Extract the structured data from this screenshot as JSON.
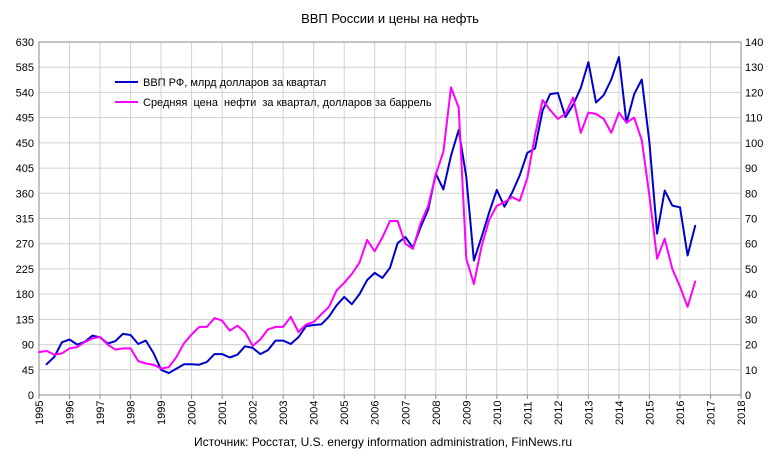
{
  "chart_data": {
    "type": "line",
    "title": "ВВП России и цены на нефть",
    "source": "Источник: Росстат, U.S. energy information administration, FinNews.ru",
    "xlim": [
      1995,
      2018
    ],
    "x_ticks": [
      "1995",
      "1996",
      "1997",
      "1998",
      "1999",
      "2000",
      "2001",
      "2002",
      "2003",
      "2004",
      "2005",
      "2006",
      "2007",
      "2008",
      "2009",
      "2010",
      "2011",
      "2012",
      "2013",
      "2014",
      "2015",
      "2016",
      "2017",
      "2018"
    ],
    "y_left": {
      "min": 0,
      "max": 630,
      "ticks": [
        "0",
        "45",
        "90",
        "135",
        "180",
        "225",
        "270",
        "315",
        "360",
        "405",
        "450",
        "495",
        "540",
        "585",
        "630"
      ]
    },
    "y_right": {
      "min": 0,
      "max": 140,
      "ticks": [
        "0",
        "10",
        "20",
        "30",
        "40",
        "50",
        "60",
        "70",
        "80",
        "90",
        "100",
        "110",
        "120",
        "130",
        "140"
      ]
    },
    "grid": true,
    "legend_position": "top-left",
    "series": [
      {
        "name": "ВВП РФ, млрд долларов за квартал",
        "axis": "left",
        "color": "#0000cc",
        "x": [
          1995.25,
          1995.5,
          1995.75,
          1996.0,
          1996.25,
          1996.5,
          1996.75,
          1997.0,
          1997.25,
          1997.5,
          1997.75,
          1998.0,
          1998.25,
          1998.5,
          1998.75,
          1999.0,
          1999.25,
          1999.5,
          1999.75,
          2000.0,
          2000.25,
          2000.5,
          2000.75,
          2001.0,
          2001.25,
          2001.5,
          2001.75,
          2002.0,
          2002.25,
          2002.5,
          2002.75,
          2003.0,
          2003.25,
          2003.5,
          2003.75,
          2004.0,
          2004.25,
          2004.5,
          2004.75,
          2005.0,
          2005.25,
          2005.5,
          2005.75,
          2006.0,
          2006.25,
          2006.5,
          2006.75,
          2007.0,
          2007.25,
          2007.5,
          2007.75,
          2008.0,
          2008.25,
          2008.5,
          2008.75,
          2009.0,
          2009.25,
          2009.5,
          2009.75,
          2010.0,
          2010.25,
          2010.5,
          2010.75,
          2011.0,
          2011.25,
          2011.5,
          2011.75,
          2012.0,
          2012.25,
          2012.5,
          2012.75,
          2013.0,
          2013.25,
          2013.5,
          2013.75,
          2014.0,
          2014.25,
          2014.5,
          2014.75,
          2015.0,
          2015.25,
          2015.5,
          2015.75,
          2016.0,
          2016.25,
          2016.5
        ],
        "values": [
          55,
          68,
          94,
          99,
          90,
          95,
          106,
          103,
          92,
          96,
          109,
          107,
          91,
          97,
          75,
          45,
          39,
          47,
          55,
          55,
          54,
          59,
          73,
          73,
          67,
          72,
          87,
          84,
          73,
          80,
          97,
          97,
          91,
          103,
          123,
          125,
          126,
          140,
          160,
          175,
          162,
          180,
          205,
          218,
          209,
          227,
          271,
          282,
          263,
          299,
          331,
          395,
          367,
          427,
          473,
          389,
          240,
          282,
          326,
          366,
          336,
          361,
          392,
          432,
          440,
          508,
          537,
          539,
          496,
          518,
          548,
          594,
          522,
          535,
          563,
          603,
          486,
          537,
          563,
          451,
          288,
          365,
          338,
          335,
          249,
          302
        ]
      },
      {
        "name": "Средняя  цена  нефти  за квартал, долларов за баррель",
        "axis": "right",
        "color": "#ff00ff",
        "x": [
          1995.0,
          1995.25,
          1995.5,
          1995.75,
          1996.0,
          1996.25,
          1996.5,
          1996.75,
          1997.0,
          1997.25,
          1997.5,
          1997.75,
          1998.0,
          1998.25,
          1998.5,
          1998.75,
          1999.0,
          1999.25,
          1999.5,
          1999.75,
          2000.0,
          2000.25,
          2000.5,
          2000.75,
          2001.0,
          2001.25,
          2001.5,
          2001.75,
          2002.0,
          2002.25,
          2002.5,
          2002.75,
          2003.0,
          2003.25,
          2003.5,
          2003.75,
          2004.0,
          2004.25,
          2004.5,
          2004.75,
          2005.0,
          2005.25,
          2005.5,
          2005.75,
          2006.0,
          2006.25,
          2006.5,
          2006.75,
          2007.0,
          2007.25,
          2007.5,
          2007.75,
          2008.0,
          2008.25,
          2008.5,
          2008.75,
          2009.0,
          2009.25,
          2009.5,
          2009.75,
          2010.0,
          2010.25,
          2010.5,
          2010.75,
          2011.0,
          2011.25,
          2011.5,
          2011.75,
          2012.0,
          2012.25,
          2012.5,
          2012.75,
          2013.0,
          2013.25,
          2013.5,
          2013.75,
          2014.0,
          2014.25,
          2014.5,
          2014.75,
          2015.0,
          2015.25,
          2015.5,
          2015.75,
          2016.0,
          2016.25,
          2016.5
        ],
        "values": [
          17,
          17.5,
          16,
          16.5,
          18.5,
          19,
          21,
          22.5,
          23,
          20,
          18,
          18.5,
          18.5,
          13.5,
          12.5,
          12,
          10.5,
          11,
          15,
          20.5,
          24,
          27,
          27,
          30.5,
          29.5,
          25.5,
          27.5,
          25,
          19.5,
          22,
          26,
          27,
          27,
          31,
          25,
          28,
          29,
          32,
          35,
          41.5,
          44.5,
          48,
          52.5,
          61.5,
          57,
          62.5,
          69,
          69,
          60,
          58,
          68,
          75,
          87.5,
          96.5,
          122,
          114,
          54,
          44,
          59,
          69.5,
          75,
          76.5,
          78.5,
          77,
          86,
          103,
          117,
          113,
          109.5,
          111.5,
          118,
          104,
          112,
          111.5,
          109.5,
          104,
          112,
          108,
          110,
          101,
          79,
          54,
          62,
          50,
          43,
          35,
          45
        ]
      }
    ]
  }
}
